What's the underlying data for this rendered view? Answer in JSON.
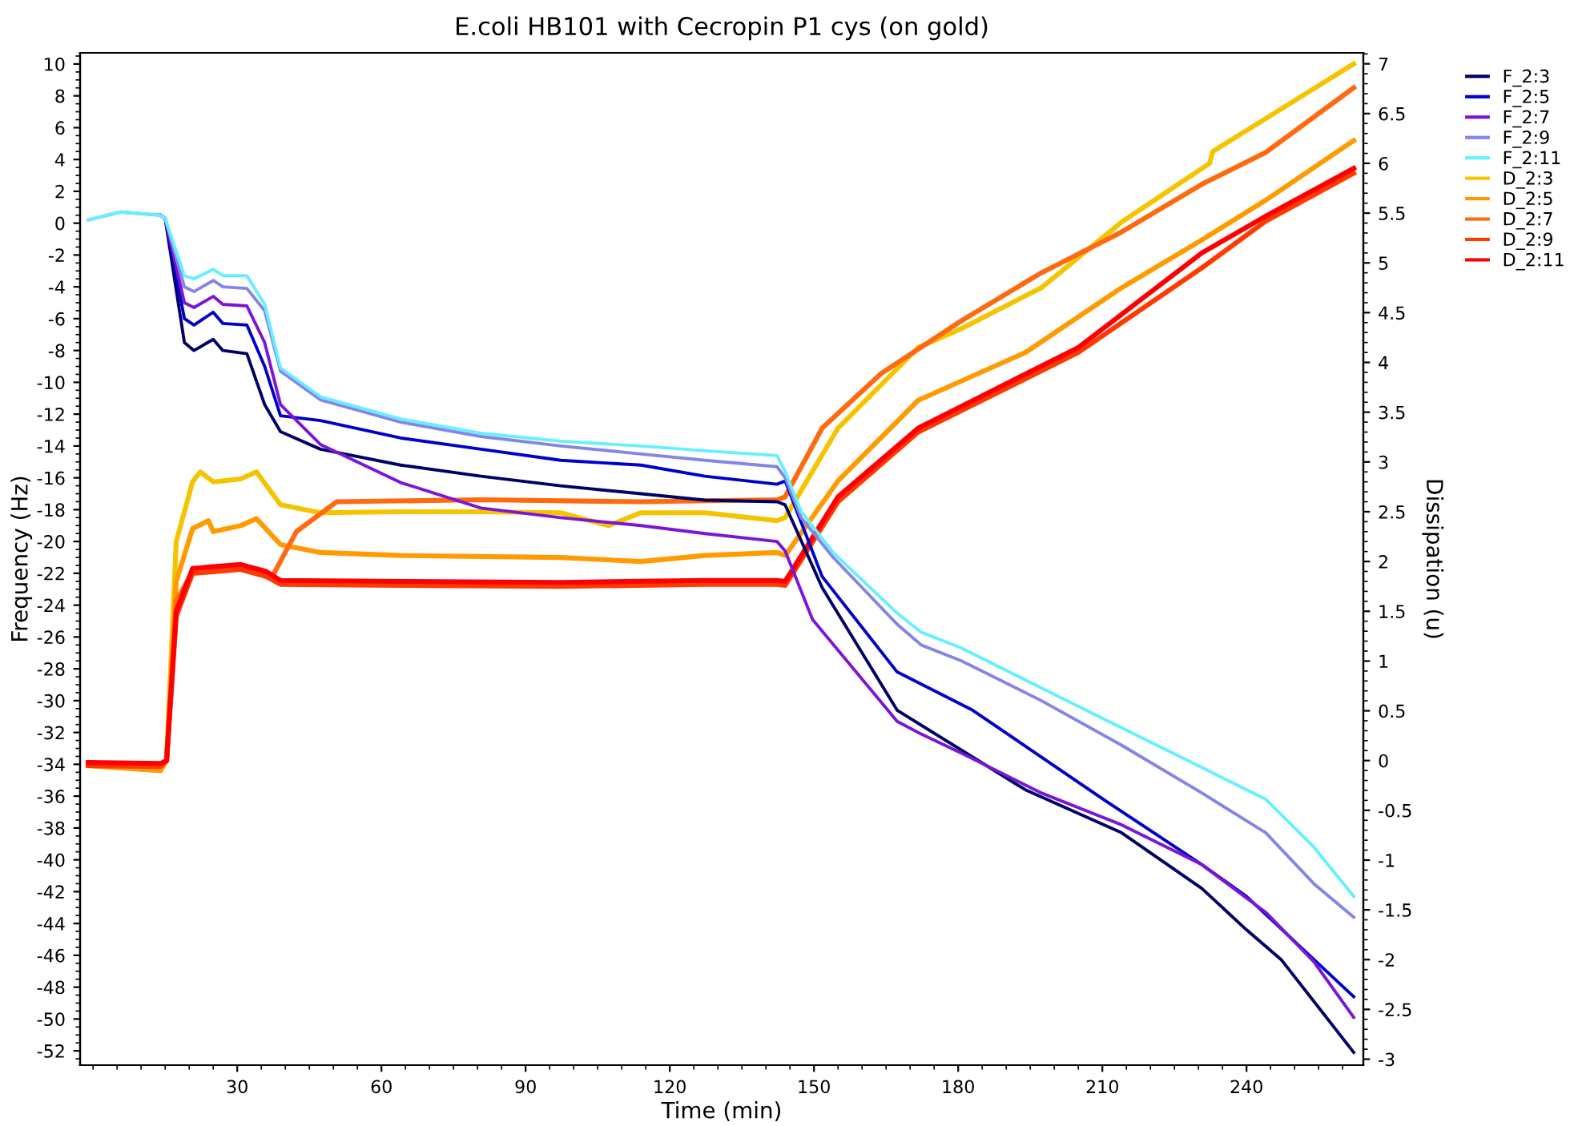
{
  "chart_data": {
    "type": "line",
    "title": "E.coli HB101 with Cecropin P1 cys (on gold)",
    "xlabel": "Time (min)",
    "ylabel": "Frequency (Hz)",
    "y2label": "Dissipation (u)",
    "xlim": [
      -2.7,
      264.3
    ],
    "xticks": [
      30,
      60,
      90,
      120,
      150,
      180,
      210,
      240
    ],
    "ylim": [
      -52.9,
      10.7
    ],
    "yticks": [
      -52,
      -50,
      -48,
      -46,
      -44,
      -42,
      -40,
      -38,
      -36,
      -34,
      -32,
      -30,
      -28,
      -26,
      -24,
      -22,
      -20,
      -18,
      -16,
      -14,
      -12,
      -10,
      -8,
      -6,
      -4,
      -2,
      0,
      2,
      4,
      6,
      8,
      10
    ],
    "y2lim": [
      -3.06,
      7.11
    ],
    "y2ticks": [
      -3,
      -2.5,
      -2,
      -1.5,
      -1,
      -0.5,
      0,
      0.5,
      1,
      1.5,
      2,
      2.5,
      3,
      3.5,
      4,
      4.5,
      5,
      5.5,
      6,
      6.5,
      7
    ],
    "grid": false,
    "legend": "top right",
    "marker": "none",
    "line_style": "solid",
    "series": [
      {
        "name": "F_2:3",
        "color": "#000066",
        "x": [
          14,
          15,
          19,
          21,
          25,
          27,
          32,
          35.7,
          39,
          47.3,
          64,
          80.7,
          97.3,
          114,
          127.3,
          142.3,
          144,
          151.7,
          167.3,
          194,
          214,
          230.7,
          240,
          247.3,
          262.3
        ],
        "values": [
          0.5,
          0.3,
          -7.5,
          -8,
          -7.3,
          -8,
          -8.2,
          -11.4,
          -13.1,
          -14.2,
          -15.2,
          -15.9,
          -16.5,
          -17,
          -17.4,
          -17.5,
          -17.7,
          -22.9,
          -30.6,
          -35.6,
          -38.3,
          -41.8,
          -44.4,
          -46.3,
          -52.1
        ]
      },
      {
        "name": "F_2:5",
        "color": "#0000cc",
        "x": [
          14,
          15,
          19,
          21,
          25,
          27,
          32,
          35.7,
          39,
          47.3,
          64,
          80.7,
          97.3,
          114,
          127.3,
          142.3,
          144,
          151.7,
          167.3,
          183,
          210.7,
          230.7,
          240,
          262.3
        ],
        "values": [
          0.5,
          0.3,
          -6,
          -6.4,
          -5.6,
          -6.3,
          -6.4,
          -9,
          -12.1,
          -12.4,
          -13.5,
          -14.2,
          -14.9,
          -15.2,
          -15.9,
          -16.4,
          -16.2,
          -22.2,
          -28.2,
          -30.6,
          -36.3,
          -40.3,
          -42.3,
          -48.6
        ]
      },
      {
        "name": "F_2:7",
        "color": "#7b16d6",
        "x": [
          14,
          15,
          19,
          21,
          25,
          27,
          32,
          35.7,
          39,
          47.3,
          64,
          80.7,
          97.3,
          114,
          127.3,
          142.3,
          144,
          149.7,
          167.3,
          172.3,
          180.7,
          197.3,
          214,
          230.7,
          244,
          254,
          262.3
        ],
        "values": [
          0.5,
          0.3,
          -5,
          -5.3,
          -4.6,
          -5.1,
          -5.2,
          -7.5,
          -11.4,
          -13.9,
          -16.3,
          -17.9,
          -18.5,
          -19,
          -19.5,
          -20,
          -20.6,
          -24.9,
          -31.3,
          -32.1,
          -33.3,
          -35.8,
          -37.8,
          -40.3,
          -43.3,
          -46.4,
          -49.9
        ]
      },
      {
        "name": "F_2:9",
        "color": "#8585e6",
        "x": [
          -1,
          5.7,
          14,
          15,
          19,
          21,
          25,
          27,
          32,
          35.7,
          39,
          47.3,
          64,
          80.7,
          97.3,
          114,
          127.3,
          142.3,
          144,
          147.3,
          154,
          167.3,
          172.3,
          180.7,
          197.3,
          214,
          230.7,
          244,
          254,
          262.3
        ],
        "values": [
          0.2,
          0.7,
          0.5,
          0.3,
          -4,
          -4.3,
          -3.6,
          -4,
          -4.1,
          -5.5,
          -9.3,
          -11.1,
          -12.5,
          -13.4,
          -14,
          -14.5,
          -14.9,
          -15.3,
          -16,
          -18.5,
          -21,
          -25.2,
          -26.5,
          -27.5,
          -30,
          -32.8,
          -35.8,
          -38.3,
          -41.5,
          -43.6
        ]
      },
      {
        "name": "F_2:11",
        "color": "#66f0ff",
        "x": [
          -1,
          5.7,
          14,
          15,
          19,
          21,
          25,
          27,
          32,
          35.7,
          39,
          47.3,
          64,
          80.7,
          97.3,
          114,
          127.3,
          142.3,
          144,
          147.3,
          154,
          167.3,
          172.3,
          180.7,
          197.3,
          214,
          230.7,
          244,
          254,
          262.3
        ],
        "values": [
          0.2,
          0.7,
          0.5,
          0.3,
          -3.3,
          -3.5,
          -2.9,
          -3.3,
          -3.3,
          -5.1,
          -9.1,
          -10.9,
          -12.3,
          -13.2,
          -13.7,
          -14,
          -14.3,
          -14.6,
          -15.6,
          -18.1,
          -20.7,
          -24.5,
          -25.7,
          -26.7,
          -29.2,
          -31.7,
          -34.2,
          -36.2,
          -39.2,
          -42.3
        ]
      },
      {
        "name": "D_2:3",
        "color": "#f5c400",
        "axis": "y2",
        "x": [
          -1,
          14,
          15.3,
          17.3,
          20.7,
          22.3,
          25,
          30.7,
          34,
          39,
          47.3,
          64,
          80.7,
          97.3,
          107.3,
          114,
          127.3,
          142.3,
          144,
          155,
          171.7,
          180.7,
          197.3,
          214,
          232.3,
          233,
          244,
          262.3
        ],
        "values": [
          -0.05,
          -0.1,
          0,
          2.2,
          2.8,
          2.9,
          2.8,
          2.83,
          2.9,
          2.57,
          2.49,
          2.5,
          2.5,
          2.49,
          2.36,
          2.49,
          2.49,
          2.41,
          2.44,
          3.34,
          4.15,
          4.34,
          4.75,
          5.41,
          6.0,
          6.12,
          6.45,
          7.0
        ]
      },
      {
        "name": "D_2:5",
        "color": "#ff9a00",
        "axis": "y2",
        "x": [
          -1,
          14,
          15.3,
          17.3,
          20.7,
          24,
          25,
          30.7,
          34,
          39,
          47.3,
          64,
          97.3,
          114,
          127.3,
          142.3,
          144,
          155,
          171.7,
          194,
          214,
          230.7,
          244,
          262.3
        ],
        "values": [
          -0.05,
          -0.1,
          0,
          1.8,
          2.33,
          2.41,
          2.3,
          2.36,
          2.43,
          2.17,
          2.09,
          2.06,
          2.04,
          2.0,
          2.06,
          2.09,
          2.06,
          2.81,
          3.62,
          4.1,
          4.75,
          5.23,
          5.63,
          6.23
        ]
      },
      {
        "name": "D_2:7",
        "color": "#ff6a10",
        "axis": "y2",
        "x": [
          -1,
          14,
          15.3,
          17.3,
          20.7,
          30.7,
          37.3,
          42.3,
          50.7,
          80.7,
          114,
          142.3,
          144,
          151.7,
          164,
          180.7,
          197.3,
          214,
          230.7,
          244,
          262.3
        ],
        "values": [
          -0.05,
          -0.05,
          0,
          1.6,
          1.9,
          1.95,
          1.85,
          2.3,
          2.6,
          2.62,
          2.6,
          2.62,
          2.65,
          3.34,
          3.89,
          4.42,
          4.9,
          5.31,
          5.79,
          6.11,
          6.76
        ]
      },
      {
        "name": "D_2:9",
        "color": "#ff3a00",
        "axis": "y2",
        "x": [
          -1,
          14,
          15.3,
          17.3,
          20.7,
          30.7,
          36,
          39,
          64,
          97.3,
          127.3,
          142.3,
          144,
          155,
          171.7,
          205,
          230.7,
          244,
          262.3
        ],
        "values": [
          -0.05,
          -0.06,
          0,
          1.45,
          1.88,
          1.92,
          1.85,
          1.77,
          1.76,
          1.75,
          1.77,
          1.77,
          1.76,
          2.6,
          3.3,
          4.1,
          4.95,
          5.42,
          5.9
        ]
      },
      {
        "name": "D_2:11",
        "color": "#ff0000",
        "axis": "y2",
        "x": [
          -1,
          14,
          15.3,
          17.3,
          20.7,
          30.7,
          36,
          39,
          64,
          97.3,
          127.3,
          142.3,
          144,
          155,
          171.7,
          205,
          230.7,
          244,
          262.3
        ],
        "values": [
          -0.02,
          -0.03,
          0,
          1.5,
          1.93,
          1.97,
          1.9,
          1.81,
          1.8,
          1.79,
          1.81,
          1.81,
          1.8,
          2.65,
          3.34,
          4.15,
          5.1,
          5.47,
          5.95
        ]
      }
    ]
  }
}
